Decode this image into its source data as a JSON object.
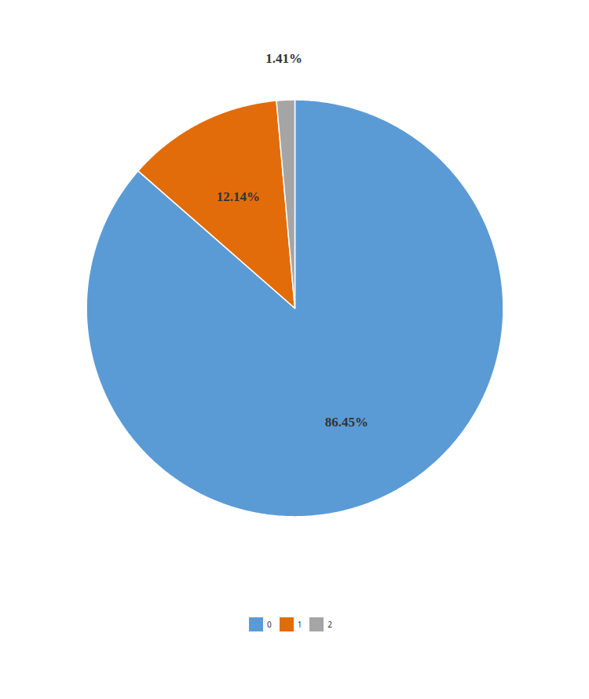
{
  "chart_data": {
    "type": "pie",
    "categories": [
      "0",
      "1",
      "2"
    ],
    "values": [
      86.45,
      12.14,
      1.41
    ],
    "value_labels": [
      "86.45%",
      "12.14%",
      "1.41%"
    ],
    "colors": [
      "#5B9BD5",
      "#E36C0A",
      "#A5A5A5"
    ],
    "data_labels": true,
    "legend": "bottom"
  }
}
